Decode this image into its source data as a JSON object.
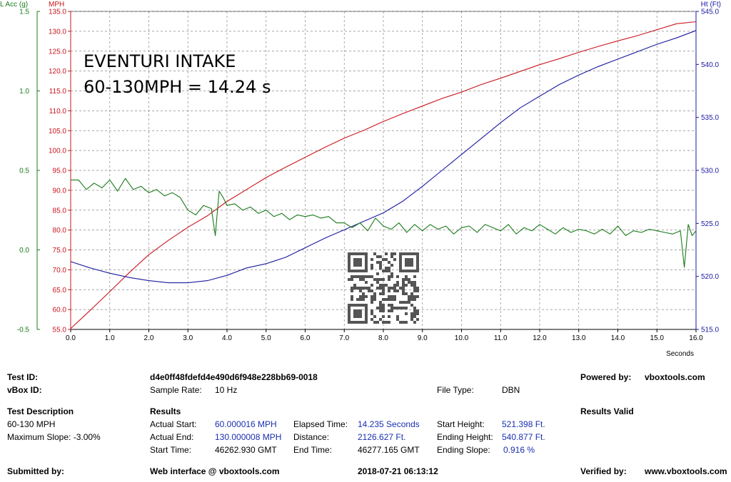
{
  "colors": {
    "speed": "#c8161d",
    "accel": "#1a7a1a",
    "height": "#1a1aa0",
    "grid": "#888888",
    "axis_blue": "#1a2fb0"
  },
  "overlay": {
    "line1": "EVENTURI INTAKE",
    "line2": "60-130MPH = 14.24 s"
  },
  "qr_icon": "qr-code-icon",
  "chart_data": {
    "type": "line",
    "x_label": "Seconds",
    "x_range": [
      0,
      16
    ],
    "x_ticks": [
      "0.0",
      "1.0",
      "2.0",
      "3.0",
      "4.0",
      "5.0",
      "6.0",
      "7.0",
      "8.0",
      "9.0",
      "10.0",
      "11.0",
      "12.0",
      "13.0",
      "14.0",
      "15.0",
      "16.0"
    ],
    "axes": {
      "left_outer": {
        "label": "L Acc (g)",
        "range": [
          -0.5,
          1.5
        ],
        "ticks": [
          "1.5",
          "1.0",
          "0.5",
          "0.0",
          "-0.5"
        ]
      },
      "left_inner": {
        "label": "MPH",
        "range": [
          55,
          135
        ],
        "ticks": [
          "135.0",
          "130.0",
          "125.0",
          "120.0",
          "115.0",
          "110.0",
          "105.0",
          "100.0",
          "95.0",
          "90.0",
          "85.0",
          "80.0",
          "75.0",
          "70.0",
          "65.0",
          "60.0",
          "55.0"
        ]
      },
      "right": {
        "label": "Ht (Ft)",
        "range": [
          515,
          545
        ],
        "ticks": [
          "545.0",
          "540.0",
          "535.0",
          "530.0",
          "525.0",
          "520.0",
          "515.0"
        ]
      }
    },
    "series": [
      {
        "name": "MPH",
        "axis": "left_inner",
        "x": [
          0,
          0.5,
          1,
          1.5,
          2,
          2.5,
          3,
          3.5,
          4,
          4.5,
          5,
          5.5,
          6,
          6.5,
          7,
          7.5,
          8,
          8.5,
          9,
          9.5,
          10,
          10.5,
          11,
          11.5,
          12,
          12.5,
          13,
          13.5,
          14,
          14.5,
          15,
          15.5,
          16
        ],
        "values": [
          55.2,
          59.8,
          64.5,
          69.3,
          73.8,
          77.4,
          80.7,
          83.6,
          87.2,
          90.2,
          93.2,
          95.8,
          98.3,
          100.8,
          103.1,
          105.1,
          107.3,
          109.3,
          111.2,
          113.1,
          114.7,
          116.6,
          118.2,
          119.9,
          121.6,
          123.1,
          124.7,
          126.2,
          127.6,
          128.9,
          130.4,
          131.9,
          132.4
        ]
      },
      {
        "name": "Ht (Ft)",
        "axis": "right",
        "x": [
          0,
          0.5,
          1,
          1.5,
          2,
          2.5,
          3,
          3.5,
          4,
          4.5,
          5,
          5.5,
          6,
          6.5,
          7,
          7.5,
          8,
          8.5,
          9,
          9.5,
          10,
          10.5,
          11,
          11.5,
          12,
          12.5,
          13,
          13.5,
          14,
          14.5,
          15,
          15.5,
          16
        ],
        "values": [
          521.4,
          520.8,
          520.3,
          519.9,
          519.6,
          519.4,
          519.4,
          519.6,
          520.1,
          520.8,
          521.2,
          521.8,
          522.7,
          523.6,
          524.4,
          525.2,
          526.0,
          527.1,
          528.5,
          530.0,
          531.5,
          533.0,
          534.5,
          535.9,
          537.0,
          538.1,
          539.0,
          539.8,
          540.5,
          541.2,
          541.9,
          542.5,
          543.2
        ]
      },
      {
        "name": "L Acc (g)",
        "axis": "left_outer",
        "x": [
          0,
          0.2,
          0.4,
          0.6,
          0.8,
          1.0,
          1.2,
          1.4,
          1.6,
          1.8,
          2.0,
          2.2,
          2.4,
          2.6,
          2.8,
          3.0,
          3.2,
          3.4,
          3.6,
          3.7,
          3.8,
          3.9,
          4.0,
          4.2,
          4.4,
          4.6,
          4.8,
          5.0,
          5.2,
          5.4,
          5.6,
          5.8,
          6.0,
          6.2,
          6.4,
          6.6,
          6.8,
          7.0,
          7.2,
          7.4,
          7.6,
          7.8,
          8.0,
          8.2,
          8.4,
          8.6,
          8.8,
          9.0,
          9.2,
          9.4,
          9.6,
          9.8,
          10.0,
          10.2,
          10.4,
          10.6,
          10.8,
          11.0,
          11.2,
          11.4,
          11.6,
          11.8,
          12.0,
          12.2,
          12.4,
          12.6,
          12.8,
          13.0,
          13.2,
          13.4,
          13.6,
          13.8,
          14.0,
          14.2,
          14.4,
          14.6,
          14.8,
          15.0,
          15.2,
          15.4,
          15.6,
          15.7,
          15.8,
          15.9,
          16.0
        ],
        "values": [
          0.44,
          0.44,
          0.38,
          0.42,
          0.39,
          0.44,
          0.37,
          0.45,
          0.38,
          0.4,
          0.36,
          0.38,
          0.34,
          0.36,
          0.33,
          0.25,
          0.22,
          0.28,
          0.26,
          0.09,
          0.37,
          0.33,
          0.28,
          0.29,
          0.25,
          0.27,
          0.23,
          0.25,
          0.21,
          0.23,
          0.19,
          0.22,
          0.21,
          0.22,
          0.2,
          0.21,
          0.17,
          0.17,
          0.14,
          0.17,
          0.12,
          0.2,
          0.15,
          0.13,
          0.17,
          0.11,
          0.16,
          0.12,
          0.16,
          0.13,
          0.15,
          0.1,
          0.14,
          0.15,
          0.11,
          0.16,
          0.14,
          0.12,
          0.16,
          0.1,
          0.14,
          0.12,
          0.16,
          0.13,
          0.1,
          0.14,
          0.11,
          0.13,
          0.12,
          0.1,
          0.13,
          0.1,
          0.15,
          0.09,
          0.12,
          0.11,
          0.13,
          0.12,
          0.11,
          0.1,
          0.12,
          -0.11,
          0.16,
          0.09,
          0.12
        ]
      }
    ]
  },
  "info": {
    "test_id_label": "Test ID:",
    "test_id": "d4e0ff48fdefd4e490d6f948e228bb69-0018",
    "powered_by_label": "Powered by:",
    "powered_by": "vboxtools.com",
    "vbox_id_label": "vBox ID:",
    "sample_rate_label": "Sample Rate:",
    "sample_rate": "10 Hz",
    "file_type_label": "File Type:",
    "file_type": "DBN",
    "test_description_label": "Test Description",
    "results_label": "Results",
    "results_valid": "Results Valid",
    "description": "60-130 MPH",
    "max_slope": "Maximum Slope:  -3.00%",
    "actual_start_label": "Actual Start:",
    "actual_start": "60.000016 MPH",
    "elapsed_label": "Elapsed Time:",
    "elapsed": "14.235 Seconds",
    "start_height_label": "Start Height:",
    "start_height": "521.398 Ft.",
    "actual_end_label": "Actual End:",
    "actual_end": "130.000008 MPH",
    "distance_label": "Distance:",
    "distance": "2126.627 Ft.",
    "ending_height_label": "Ending Height:",
    "ending_height": "540.877 Ft.",
    "start_time_label": "Start Time:",
    "start_time": "46262.930 GMT",
    "end_time_label": "End Time:",
    "end_time": "46277.165 GMT",
    "ending_slope_label": "Ending Slope:",
    "ending_slope": "0.916 %",
    "submitted_by_label": "Submitted by:",
    "web_interface": "Web interface @ vboxtools.com",
    "datetime": "2018-07-21 06:13:12",
    "verified_by_label": "Verified by:",
    "verified_by": "www.vboxtools.com"
  }
}
